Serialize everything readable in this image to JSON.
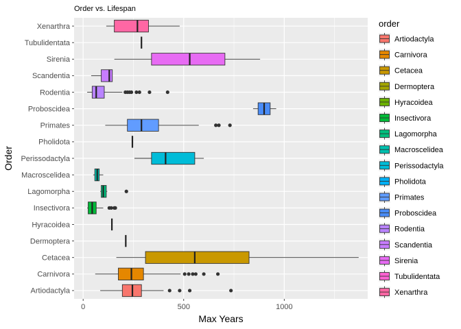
{
  "chart_data": {
    "type": "boxplot",
    "orientation": "horizontal",
    "title": "Order vs. Lifespan",
    "xlabel": "Max Years",
    "ylabel": "Order",
    "xlim": [
      -45,
      1415
    ],
    "x_ticks": [
      0,
      500,
      1000
    ],
    "legend": {
      "title": "order",
      "placement": "right"
    },
    "categories": [
      "Artiodactyla",
      "Carnivora",
      "Cetacea",
      "Dermoptera",
      "Hyracoidea",
      "Insectivora",
      "Lagomorpha",
      "Macroscelidea",
      "Perissodactyla",
      "Pholidota",
      "Primates",
      "Proboscidea",
      "Rodentia",
      "Scandentia",
      "Sirenia",
      "Tubulidentata",
      "Xenarthra"
    ],
    "colors": [
      "#F8766D",
      "#E58700",
      "#C99800",
      "#A3A500",
      "#6BB100",
      "#00BA38",
      "#00BF7D",
      "#00C0AF",
      "#00BCD8",
      "#00B0F6",
      "#619CFF",
      "#4A8CF7",
      "#B983FF",
      "#C77CFF",
      "#E76BF3",
      "#FD61D1",
      "#FF67A4"
    ],
    "boxes": [
      {
        "order": "Artiodactyla",
        "min": 85,
        "q1": 195,
        "median": 245,
        "q3": 290,
        "max": 400,
        "outliers": [
          430,
          480,
          530,
          735
        ]
      },
      {
        "order": "Carnivora",
        "min": 60,
        "q1": 175,
        "median": 240,
        "q3": 300,
        "max": 485,
        "outliers": [
          505,
          525,
          545,
          560,
          600,
          670
        ]
      },
      {
        "order": "Cetacea",
        "min": 165,
        "q1": 310,
        "median": 555,
        "q3": 825,
        "max": 1370,
        "outliers": []
      },
      {
        "order": "Dermoptera",
        "min": 212,
        "q1": 212,
        "median": 212,
        "q3": 212,
        "max": 212,
        "outliers": []
      },
      {
        "order": "Hyracoidea",
        "min": 143,
        "q1": 143,
        "median": 143,
        "q3": 143,
        "max": 143,
        "outliers": []
      },
      {
        "order": "Insectivora",
        "min": 20,
        "q1": 25,
        "median": 45,
        "q3": 65,
        "max": 100,
        "outliers": [
          130,
          140,
          155,
          160
        ]
      },
      {
        "order": "Lagomorpha",
        "min": 85,
        "q1": 90,
        "median": 100,
        "q3": 115,
        "max": 120,
        "outliers": [
          215
        ]
      },
      {
        "order": "Macroscelidea",
        "min": 50,
        "q1": 58,
        "median": 70,
        "q3": 80,
        "max": 100,
        "outliers": []
      },
      {
        "order": "Perissodactyla",
        "min": 255,
        "q1": 340,
        "median": 410,
        "q3": 555,
        "max": 600,
        "outliers": []
      },
      {
        "order": "Pholidota",
        "min": 245,
        "q1": 245,
        "median": 245,
        "q3": 245,
        "max": 245,
        "outliers": []
      },
      {
        "order": "Primates",
        "min": 110,
        "q1": 220,
        "median": 290,
        "q3": 375,
        "max": 575,
        "outliers": [
          660,
          675,
          730
        ]
      },
      {
        "order": "Proboscidea",
        "min": 845,
        "q1": 870,
        "median": 900,
        "q3": 930,
        "max": 960,
        "outliers": []
      },
      {
        "order": "Rodentia",
        "min": 20,
        "q1": 45,
        "median": 65,
        "q3": 105,
        "max": 195,
        "outliers": [
          210,
          220,
          230,
          240,
          265,
          280,
          330,
          420
        ]
      },
      {
        "order": "Scandentia",
        "min": 40,
        "q1": 90,
        "median": 130,
        "q3": 145,
        "max": 145,
        "outliers": []
      },
      {
        "order": "Sirenia",
        "min": 155,
        "q1": 340,
        "median": 530,
        "q3": 705,
        "max": 880,
        "outliers": []
      },
      {
        "order": "Tubulidentata",
        "min": 290,
        "q1": 290,
        "median": 290,
        "q3": 290,
        "max": 290,
        "outliers": []
      },
      {
        "order": "Xenarthra",
        "min": 115,
        "q1": 155,
        "median": 270,
        "q3": 325,
        "max": 480,
        "outliers": []
      }
    ]
  }
}
